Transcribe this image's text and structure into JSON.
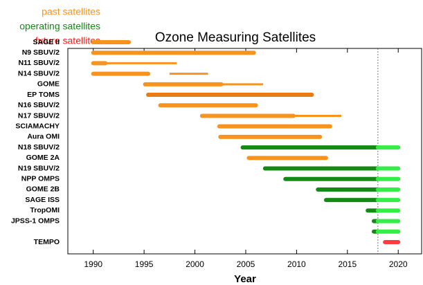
{
  "chart_data": {
    "type": "gantt",
    "title": "Ozone Measuring Satellites",
    "x_label": "Year",
    "legend": [
      {
        "label": "past satellites",
        "color": "#f7931e"
      },
      {
        "label": "operating satellites",
        "color": "#138a13"
      },
      {
        "label": "future satellites",
        "color": "#ff1a1a"
      }
    ],
    "xlim": [
      1987.5,
      2022.3
    ],
    "xticks": [
      1990,
      1995,
      2000,
      2005,
      2010,
      2015,
      2020
    ],
    "reference_x": 2018,
    "rows": [
      {
        "name": "SAGE II",
        "bars": [
          {
            "start": 1990,
            "end": 1993.5,
            "color": "#f7931e",
            "thick": true
          }
        ]
      },
      {
        "name": "N9 SBUV/2",
        "bars": [
          {
            "start": 1990,
            "end": 2005.8,
            "color": "#f7931e",
            "thick": true
          }
        ]
      },
      {
        "name": "N11 SBUV/2",
        "bars": [
          {
            "start": 1990,
            "end": 1991.2,
            "color": "#f7931e",
            "thick": true
          },
          {
            "start": 1991.2,
            "end": 1998.2,
            "color": "#f7931e",
            "thick": false
          }
        ]
      },
      {
        "name": "N14 SBUV/2",
        "bars": [
          {
            "start": 1990,
            "end": 1995.4,
            "color": "#f7931e",
            "thick": true
          },
          {
            "start": 1997.5,
            "end": 2001.3,
            "color": "#f7931e",
            "thick": false
          }
        ]
      },
      {
        "name": "GOME",
        "bars": [
          {
            "start": 1995.1,
            "end": 2002.6,
            "color": "#f7931e",
            "thick": true
          },
          {
            "start": 2002.6,
            "end": 2006.7,
            "color": "#f7931e",
            "thick": false
          }
        ]
      },
      {
        "name": "EP TOMS",
        "bars": [
          {
            "start": 1995.4,
            "end": 2011.5,
            "color": "#ea7a12",
            "thick": true
          }
        ]
      },
      {
        "name": "N16 SBUV/2",
        "bars": [
          {
            "start": 1996.6,
            "end": 2006.0,
            "color": "#f7931e",
            "thick": true
          }
        ]
      },
      {
        "name": "N17 SBUV/2",
        "bars": [
          {
            "start": 2000.7,
            "end": 2009.7,
            "color": "#f7931e",
            "thick": true
          },
          {
            "start": 2009.7,
            "end": 2014.4,
            "color": "#f7931e",
            "thick": false
          }
        ]
      },
      {
        "name": "SCIAMACHY",
        "bars": [
          {
            "start": 2002.4,
            "end": 2013.3,
            "color": "#f7931e",
            "thick": true
          }
        ]
      },
      {
        "name": "Aura OMI",
        "bars": [
          {
            "start": 2002.5,
            "end": 2012.3,
            "color": "#f7931e",
            "thick": true
          }
        ]
      },
      {
        "name": "N18 SBUV/2",
        "bars": [
          {
            "start": 2004.7,
            "end": 2018,
            "color": "#138a13",
            "thick": true
          },
          {
            "start": 2018,
            "end": 2020,
            "color": "#33ee44",
            "thick": true
          }
        ]
      },
      {
        "name": "GOME 2A",
        "bars": [
          {
            "start": 2005.3,
            "end": 2012.9,
            "color": "#f7931e",
            "thick": true
          }
        ]
      },
      {
        "name": "N19 SBUV/2",
        "bars": [
          {
            "start": 2006.9,
            "end": 2018,
            "color": "#138a13",
            "thick": true
          },
          {
            "start": 2018,
            "end": 2020,
            "color": "#33ee44",
            "thick": true
          }
        ]
      },
      {
        "name": "NPP OMPS",
        "bars": [
          {
            "start": 2008.9,
            "end": 2018,
            "color": "#138a13",
            "thick": true
          },
          {
            "start": 2018,
            "end": 2020,
            "color": "#33ee44",
            "thick": true
          }
        ]
      },
      {
        "name": "GOME 2B",
        "bars": [
          {
            "start": 2012.1,
            "end": 2018,
            "color": "#138a13",
            "thick": true
          },
          {
            "start": 2018,
            "end": 2020,
            "color": "#33ee44",
            "thick": true
          }
        ]
      },
      {
        "name": "SAGE ISS",
        "bars": [
          {
            "start": 2012.9,
            "end": 2018,
            "color": "#138a13",
            "thick": true
          },
          {
            "start": 2018,
            "end": 2020,
            "color": "#33ee44",
            "thick": true
          }
        ]
      },
      {
        "name": "TropOMI",
        "bars": [
          {
            "start": 2017.0,
            "end": 2018,
            "color": "#138a13",
            "thick": true
          },
          {
            "start": 2018,
            "end": 2020,
            "color": "#33ee44",
            "thick": true
          }
        ]
      },
      {
        "name": "JPSS-1 OMPS",
        "bars": [
          {
            "start": 2017.6,
            "end": 2018,
            "color": "#138a13",
            "thick": true
          },
          {
            "start": 2018,
            "end": 2020,
            "color": "#33ee44",
            "thick": true
          }
        ]
      },
      {
        "name": "",
        "bars": [
          {
            "start": 2017.6,
            "end": 2018,
            "color": "#138a13",
            "thick": true
          },
          {
            "start": 2018,
            "end": 2020,
            "color": "#33ee44",
            "thick": true
          }
        ]
      },
      {
        "name": "TEMPO",
        "bars": [
          {
            "start": 2018.7,
            "end": 2020,
            "color": "#ff3b3b",
            "thick": true
          }
        ]
      }
    ]
  }
}
